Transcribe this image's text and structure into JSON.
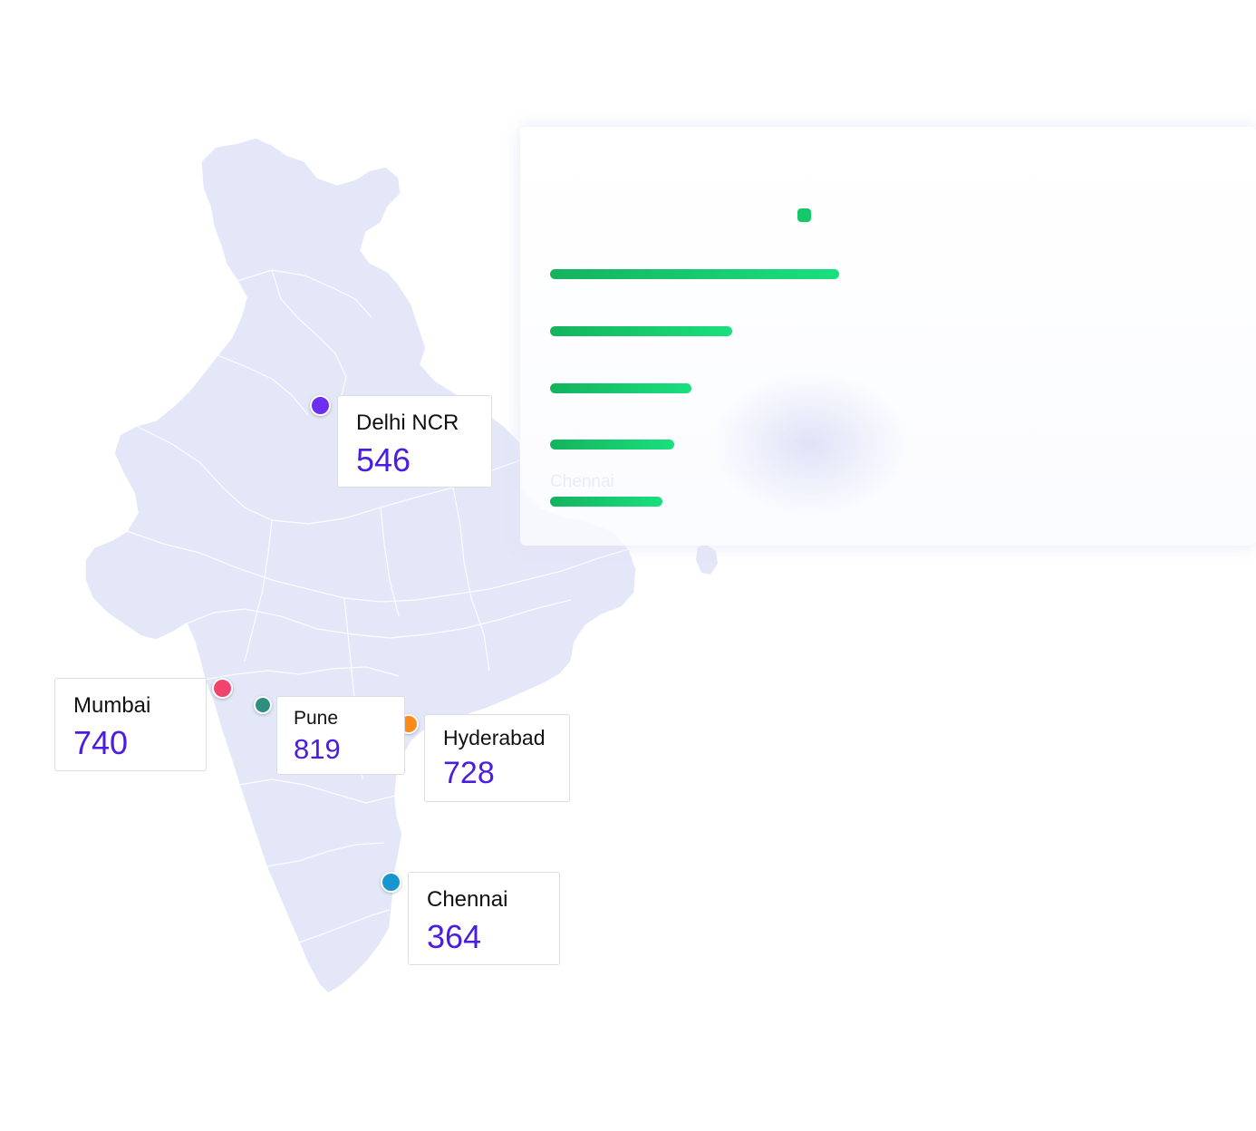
{
  "map": {
    "fill": "#e3e7f8",
    "border": "#ffffff"
  },
  "stats_panel": {
    "legend_color": "#13c96a",
    "bar_values": [
      1.0,
      0.63,
      0.49,
      0.43,
      0.39
    ],
    "last_bar_label": "Chennai"
  },
  "locations": [
    {
      "id": "delhi",
      "city": "Delhi NCR",
      "value": "546",
      "marker_color": "#6a2ff0"
    },
    {
      "id": "mumbai",
      "city": "Mumbai",
      "value": "740",
      "marker_color": "#f0436d"
    },
    {
      "id": "pune",
      "city": "Pune",
      "value": "819",
      "marker_color": "#2e8f80"
    },
    {
      "id": "hyderabad",
      "city": "Hyderabad",
      "value": "728",
      "marker_color": "#ff8a1c"
    },
    {
      "id": "chennai",
      "city": "Chennai",
      "value": "364",
      "marker_color": "#1896d1"
    }
  ]
}
